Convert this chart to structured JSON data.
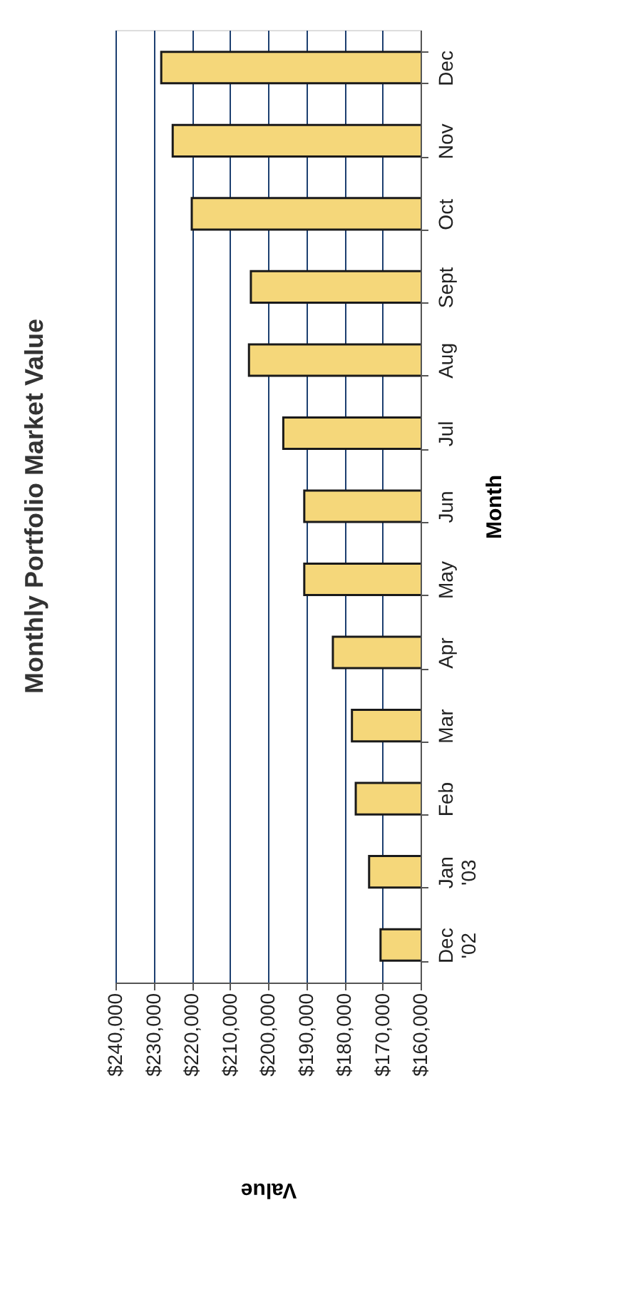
{
  "chart_data": {
    "type": "bar",
    "orientation": "horizontal",
    "title": "Monthly Portfolio Market Value",
    "xlabel": "Value",
    "ylabel": "Month",
    "categories": [
      "Dec",
      "Nov",
      "Oct",
      "Sept",
      "Aug",
      "Jul",
      "Jun",
      "May",
      "Apr",
      "Mar",
      "Feb",
      "Jan '03",
      "Dec '02"
    ],
    "values": [
      228000,
      225000,
      220000,
      204500,
      205000,
      196000,
      190500,
      190500,
      183000,
      178000,
      177000,
      173500,
      170500
    ],
    "color": "#f5d77a",
    "xlim": [
      240000,
      160000
    ],
    "xticks": [
      {
        "value": 240000,
        "label": "$240,000"
      },
      {
        "value": 230000,
        "label": "$230,000"
      },
      {
        "value": 220000,
        "label": "$220,000"
      },
      {
        "value": 210000,
        "label": "$210,000"
      },
      {
        "value": 200000,
        "label": "$200,000"
      },
      {
        "value": 190000,
        "label": "$190,000"
      },
      {
        "value": 180000,
        "label": "$180,000"
      },
      {
        "value": 170000,
        "label": "$170,000"
      },
      {
        "value": 160000,
        "label": "$160,000"
      }
    ],
    "grid": "x"
  }
}
